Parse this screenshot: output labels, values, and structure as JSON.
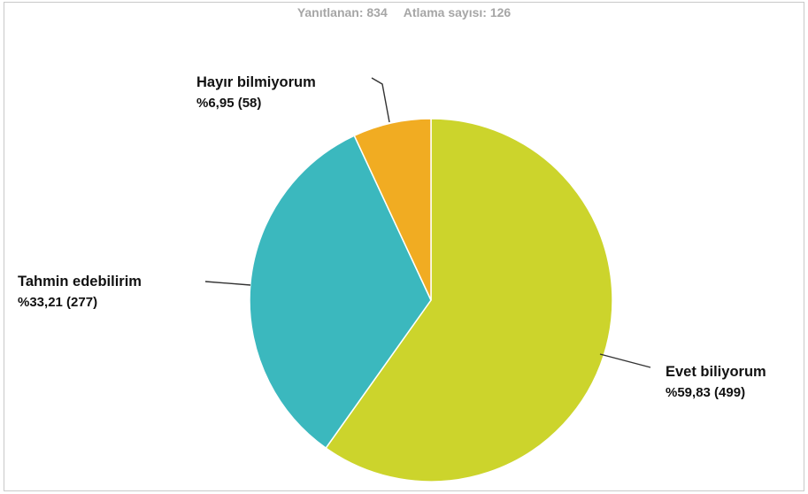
{
  "summary": {
    "answered": "Yanıtlanan: 834",
    "skipped": "Atlama sayısı: 126"
  },
  "chart_data": {
    "type": "pie",
    "slices": [
      {
        "name": "Evet biliyorum",
        "label": "%59,83 (499)",
        "percent": 59.83,
        "count": 499,
        "color": "#ccd42c"
      },
      {
        "name": "Tahmin edebilirim",
        "label": "%33,21 (277)",
        "percent": 33.21,
        "count": 277,
        "color": "#3bb8be"
      },
      {
        "name": "Hayır bilmiyorum",
        "label": "%6,95 (58)",
        "percent": 6.95,
        "count": 58,
        "color": "#f1ac22"
      }
    ]
  }
}
